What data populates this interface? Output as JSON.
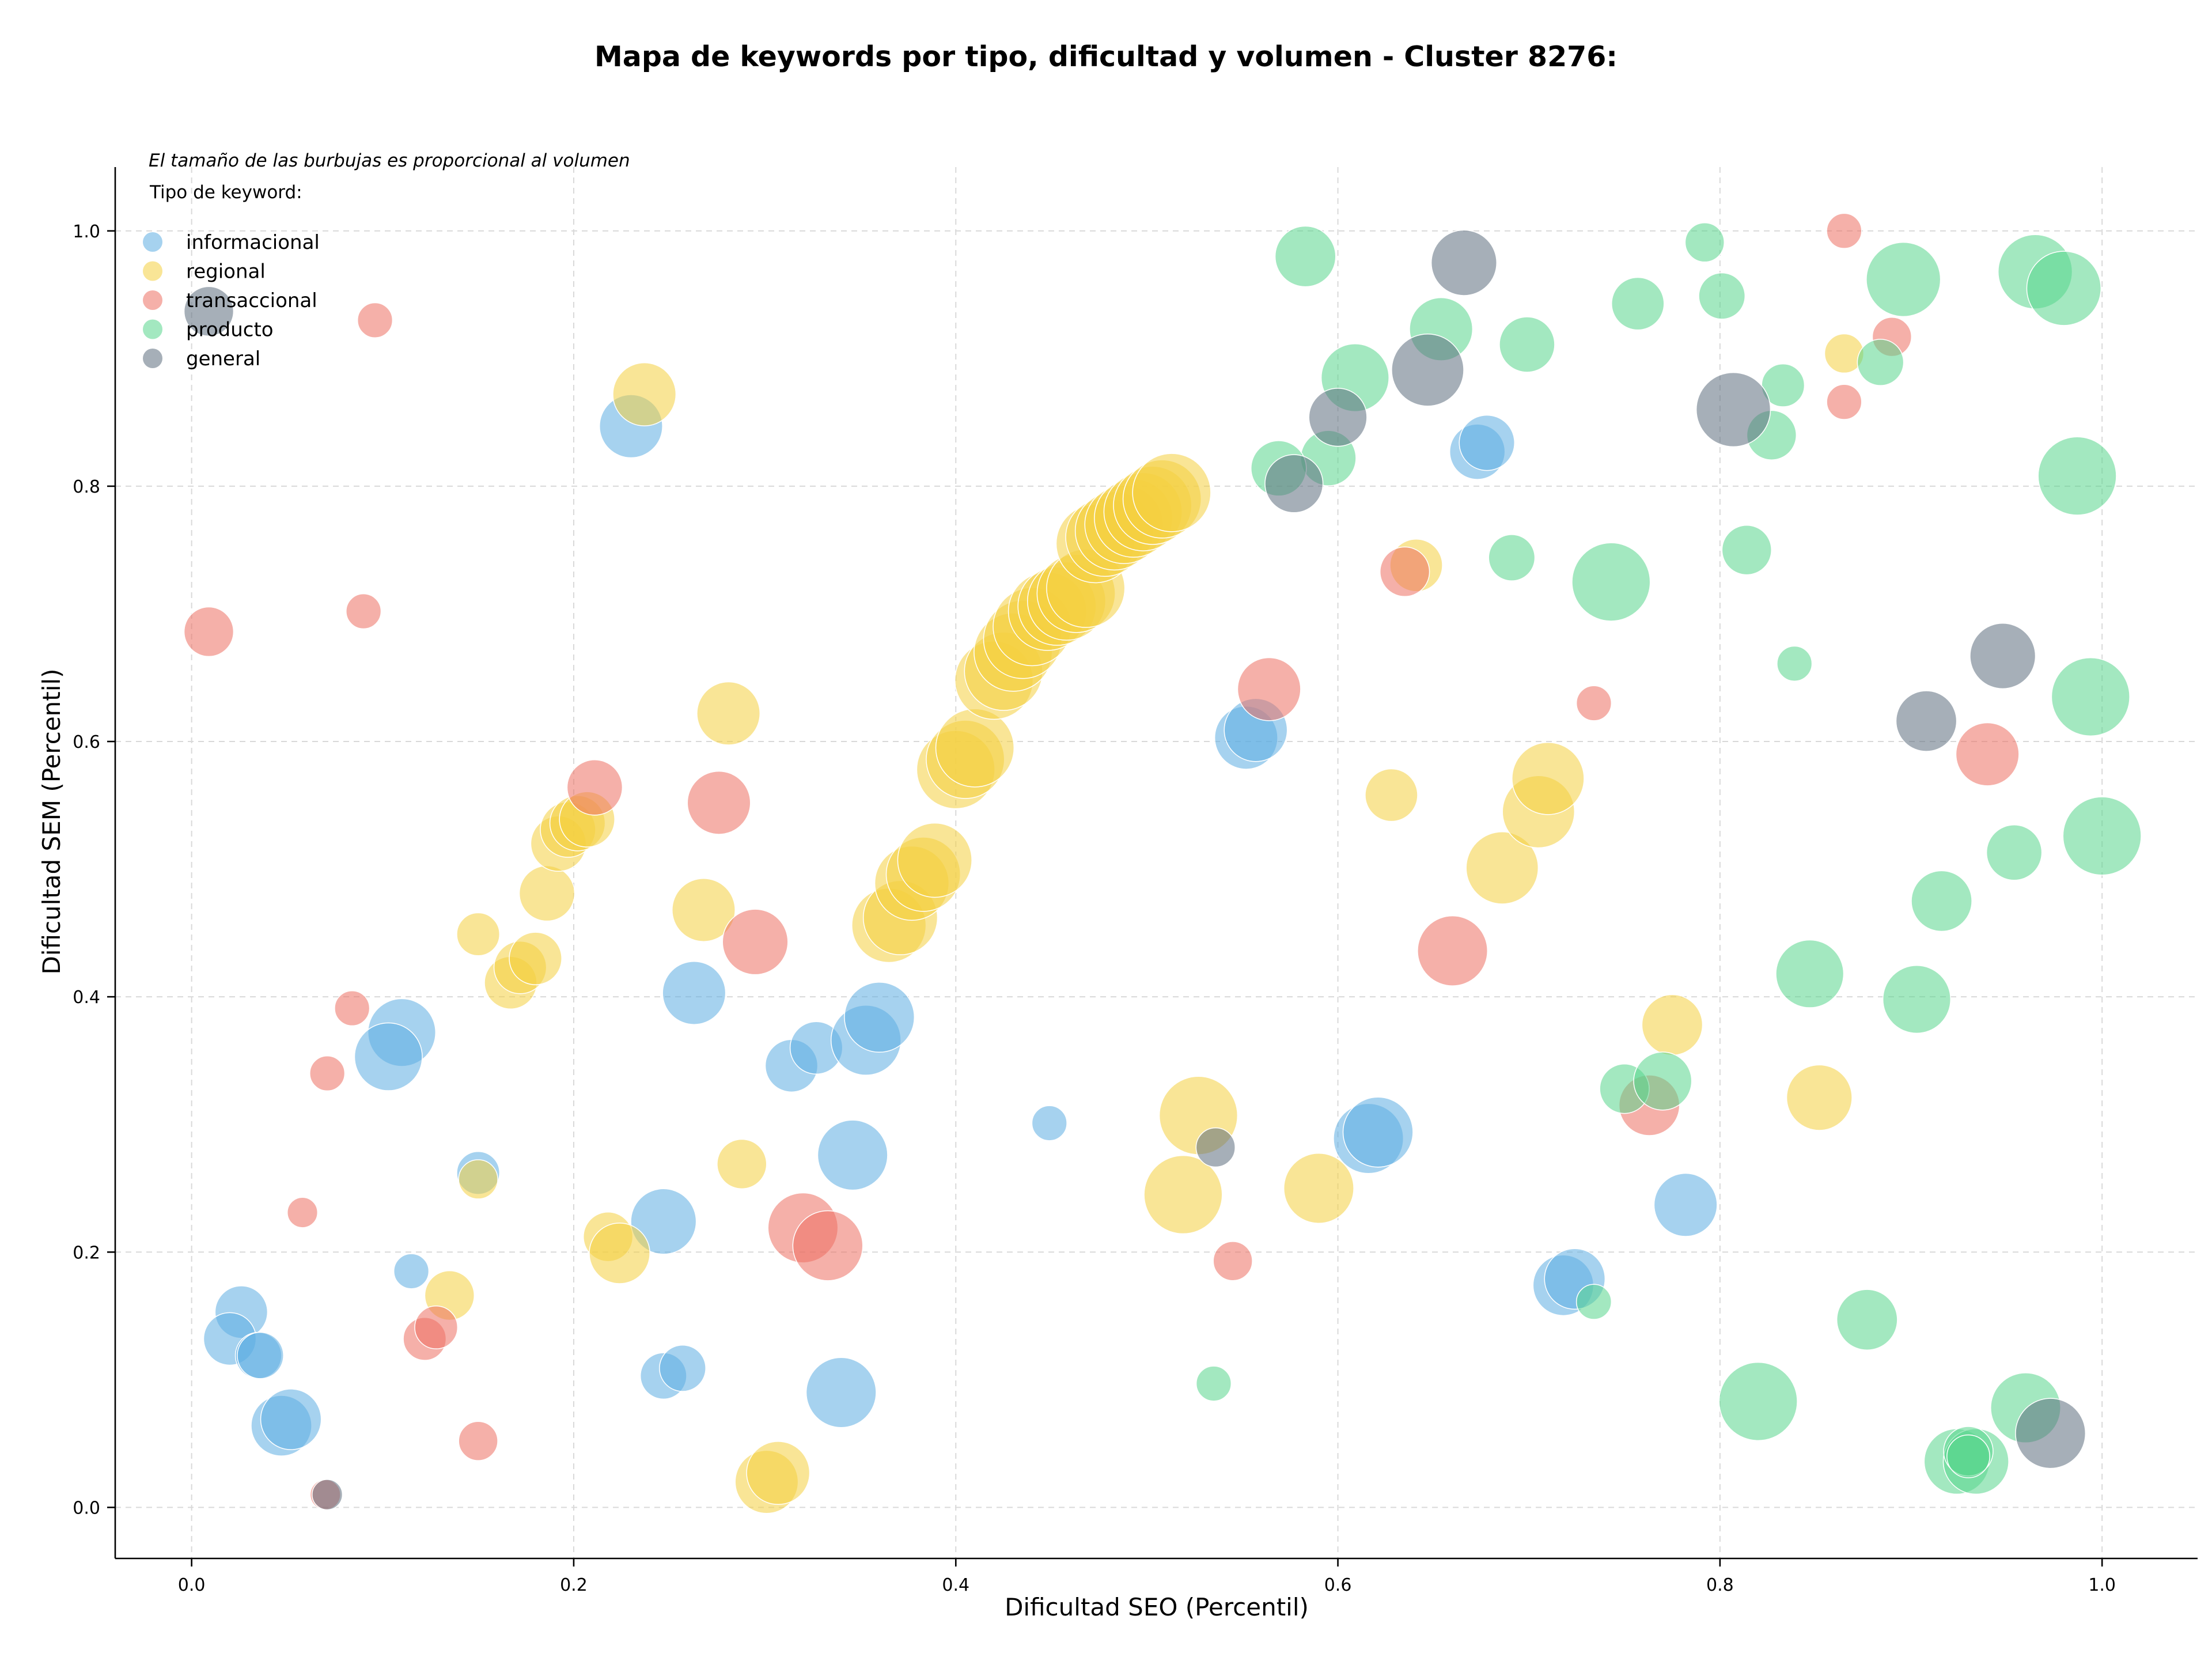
{
  "chart_data": {
    "type": "scatter",
    "title": "Mapa de keywords por tipo, dificultad y volumen - Cluster 8276:",
    "note": "El tamaño de las burbujas es proporcional al volumen",
    "xlabel": "Dificultad SEO (Percentil)",
    "ylabel": "Dificultad SEM (Percentil)",
    "xlim": [
      -0.04,
      1.05
    ],
    "ylim": [
      -0.04,
      1.05
    ],
    "xticks": [
      "0.0",
      "0.2",
      "0.4",
      "0.6",
      "0.8",
      "1.0"
    ],
    "yticks": [
      "0.0",
      "0.2",
      "0.4",
      "0.6",
      "0.8",
      "1.0"
    ],
    "grid": true,
    "legend_title": "Tipo de keyword:",
    "legend_position": "top-left",
    "series": [
      {
        "name": "informacional",
        "color": "#5DADE2",
        "points": [
          [
            0.23,
            0.847,
            1.3
          ],
          [
            0.263,
            0.403,
            1.3
          ],
          [
            0.11,
            0.372,
            1.5
          ],
          [
            0.103,
            0.353,
            1.5
          ],
          [
            0.15,
            0.262,
            0.6
          ],
          [
            0.115,
            0.185,
            0.4
          ],
          [
            0.026,
            0.153,
            0.9
          ],
          [
            0.02,
            0.132,
            0.9
          ],
          [
            0.035,
            0.119,
            0.7
          ],
          [
            0.036,
            0.119,
            0.7
          ],
          [
            0.047,
            0.064,
            1.2
          ],
          [
            0.052,
            0.069,
            1.2
          ],
          [
            0.247,
            0.224,
            1.4
          ],
          [
            0.247,
            0.103,
            0.7
          ],
          [
            0.257,
            0.109,
            0.7
          ],
          [
            0.314,
            0.346,
            0.9
          ],
          [
            0.327,
            0.36,
            0.9
          ],
          [
            0.353,
            0.366,
            1.6
          ],
          [
            0.36,
            0.384,
            1.6
          ],
          [
            0.346,
            0.276,
            1.6
          ],
          [
            0.34,
            0.09,
            1.6
          ],
          [
            0.449,
            0.301,
            0.4
          ],
          [
            0.552,
            0.603,
            1.3
          ],
          [
            0.557,
            0.609,
            1.3
          ],
          [
            0.616,
            0.289,
            1.6
          ],
          [
            0.621,
            0.294,
            1.6
          ],
          [
            0.673,
            0.827,
            1.0
          ],
          [
            0.678,
            0.834,
            1.0
          ],
          [
            0.718,
            0.174,
            1.2
          ],
          [
            0.724,
            0.179,
            1.2
          ],
          [
            0.782,
            0.237,
            1.3
          ]
        ]
      },
      {
        "name": "regional",
        "color": "#F4D03F",
        "points": [
          [
            0.237,
            0.872,
            1.3
          ],
          [
            0.281,
            0.622,
            1.3
          ],
          [
            0.268,
            0.468,
            1.3
          ],
          [
            0.15,
            0.449,
            0.6
          ],
          [
            0.167,
            0.411,
            0.9
          ],
          [
            0.172,
            0.423,
            0.9
          ],
          [
            0.18,
            0.43,
            0.9
          ],
          [
            0.186,
            0.481,
            1.0
          ],
          [
            0.192,
            0.52,
            1.0
          ],
          [
            0.197,
            0.531,
            1.0
          ],
          [
            0.202,
            0.536,
            1.0
          ],
          [
            0.207,
            0.539,
            1.0
          ],
          [
            0.15,
            0.257,
            0.5
          ],
          [
            0.135,
            0.166,
            0.8
          ],
          [
            0.218,
            0.212,
            0.8
          ],
          [
            0.224,
            0.199,
            1.2
          ],
          [
            0.288,
            0.269,
            0.8
          ],
          [
            0.301,
            0.02,
            1.3
          ],
          [
            0.307,
            0.027,
            1.3
          ],
          [
            0.365,
            0.456,
            1.8
          ],
          [
            0.371,
            0.462,
            1.8
          ],
          [
            0.377,
            0.489,
            1.8
          ],
          [
            0.383,
            0.496,
            1.8
          ],
          [
            0.389,
            0.507,
            1.8
          ],
          [
            0.4,
            0.578,
            2.0
          ],
          [
            0.405,
            0.586,
            2.0
          ],
          [
            0.41,
            0.595,
            2.0
          ],
          [
            0.42,
            0.648,
            2.0
          ],
          [
            0.425,
            0.655,
            2.0
          ],
          [
            0.43,
            0.67,
            2.0
          ],
          [
            0.435,
            0.68,
            2.0
          ],
          [
            0.44,
            0.69,
            2.0
          ],
          [
            0.448,
            0.702,
            2.0
          ],
          [
            0.453,
            0.706,
            2.0
          ],
          [
            0.458,
            0.71,
            2.0
          ],
          [
            0.463,
            0.716,
            2.0
          ],
          [
            0.468,
            0.72,
            2.0
          ],
          [
            0.473,
            0.755,
            2.0
          ],
          [
            0.478,
            0.76,
            2.0
          ],
          [
            0.483,
            0.765,
            2.0
          ],
          [
            0.488,
            0.77,
            2.0
          ],
          [
            0.493,
            0.775,
            2.0
          ],
          [
            0.498,
            0.78,
            2.0
          ],
          [
            0.503,
            0.785,
            2.0
          ],
          [
            0.508,
            0.79,
            2.0
          ],
          [
            0.513,
            0.795,
            2.0
          ],
          [
            0.527,
            0.307,
            2.0
          ],
          [
            0.519,
            0.245,
            2.0
          ],
          [
            0.59,
            0.25,
            1.6
          ],
          [
            0.628,
            0.558,
            0.9
          ],
          [
            0.641,
            0.738,
            0.9
          ],
          [
            0.686,
            0.501,
            1.7
          ],
          [
            0.705,
            0.545,
            1.7
          ],
          [
            0.71,
            0.571,
            1.7
          ],
          [
            0.775,
            0.378,
            1.2
          ],
          [
            0.852,
            0.321,
            1.4
          ],
          [
            0.865,
            0.904,
            0.5
          ]
        ]
      },
      {
        "name": "transaccional",
        "color": "#EC7063",
        "points": [
          [
            0.096,
            0.93,
            0.4
          ],
          [
            0.009,
            0.686,
            0.8
          ],
          [
            0.09,
            0.702,
            0.4
          ],
          [
            0.084,
            0.391,
            0.4
          ],
          [
            0.071,
            0.34,
            0.4
          ],
          [
            0.058,
            0.231,
            0.3
          ],
          [
            0.07,
            0.01,
            0.3
          ],
          [
            0.122,
            0.132,
            0.6
          ],
          [
            0.128,
            0.141,
            0.6
          ],
          [
            0.15,
            0.052,
            0.5
          ],
          [
            0.211,
            0.564,
            1.0
          ],
          [
            0.276,
            0.552,
            1.3
          ],
          [
            0.295,
            0.443,
            1.4
          ],
          [
            0.32,
            0.219,
            1.6
          ],
          [
            0.333,
            0.205,
            1.6
          ],
          [
            0.564,
            0.641,
            1.3
          ],
          [
            0.545,
            0.193,
            0.5
          ],
          [
            0.635,
            0.733,
            0.8
          ],
          [
            0.66,
            0.436,
            1.6
          ],
          [
            0.734,
            0.63,
            0.4
          ],
          [
            0.763,
            0.315,
            1.2
          ],
          [
            0.865,
            1.0,
            0.4
          ],
          [
            0.865,
            0.866,
            0.4
          ],
          [
            0.89,
            0.917,
            0.5
          ],
          [
            0.94,
            0.59,
            1.3
          ]
        ]
      },
      {
        "name": "producto",
        "color": "#58D68D",
        "points": [
          [
            0.583,
            0.98,
            1.2
          ],
          [
            0.654,
            0.923,
            1.3
          ],
          [
            0.699,
            0.911,
            1.0
          ],
          [
            0.609,
            0.885,
            1.5
          ],
          [
            0.595,
            0.822,
            1.0
          ],
          [
            0.569,
            0.814,
            1.0
          ],
          [
            0.691,
            0.744,
            0.7
          ],
          [
            0.535,
            0.097,
            0.4
          ],
          [
            0.757,
            0.943,
            0.9
          ],
          [
            0.792,
            0.991,
            0.5
          ],
          [
            0.801,
            0.949,
            0.7
          ],
          [
            0.833,
            0.879,
            0.6
          ],
          [
            0.827,
            0.84,
            0.8
          ],
          [
            0.814,
            0.75,
            0.8
          ],
          [
            0.743,
            0.725,
            2.0
          ],
          [
            0.839,
            0.661,
            0.4
          ],
          [
            0.884,
            0.897,
            0.7
          ],
          [
            0.896,
            0.962,
            1.8
          ],
          [
            0.965,
            0.968,
            1.8
          ],
          [
            0.98,
            0.955,
            1.8
          ],
          [
            0.987,
            0.808,
            2.0
          ],
          [
            0.994,
            0.635,
            2.0
          ],
          [
            1.0,
            0.526,
            2.0
          ],
          [
            0.954,
            0.513,
            1.0
          ],
          [
            0.916,
            0.475,
            1.2
          ],
          [
            0.903,
            0.398,
            1.5
          ],
          [
            0.847,
            0.418,
            1.5
          ],
          [
            0.75,
            0.328,
            0.8
          ],
          [
            0.77,
            0.334,
            1.1
          ],
          [
            0.734,
            0.161,
            0.4
          ],
          [
            0.877,
            0.147,
            1.2
          ],
          [
            0.82,
            0.083,
            2.0
          ],
          [
            0.96,
            0.078,
            1.6
          ],
          [
            0.924,
            0.036,
            1.4
          ],
          [
            0.934,
            0.036,
            1.4
          ],
          [
            0.93,
            0.044,
            0.8
          ],
          [
            0.93,
            0.04,
            0.6
          ]
        ]
      },
      {
        "name": "general",
        "color": "#5D6D7E",
        "points": [
          [
            0.009,
            0.937,
            0.8
          ],
          [
            0.071,
            0.01,
            0.3
          ],
          [
            0.536,
            0.282,
            0.5
          ],
          [
            0.577,
            0.802,
            1.1
          ],
          [
            0.6,
            0.854,
            1.1
          ],
          [
            0.647,
            0.891,
            1.7
          ],
          [
            0.666,
            0.975,
            1.4
          ],
          [
            0.807,
            0.86,
            1.8
          ],
          [
            0.908,
            0.616,
            1.2
          ],
          [
            0.948,
            0.667,
            1.4
          ],
          [
            0.973,
            0.058,
            1.6
          ]
        ]
      }
    ]
  }
}
